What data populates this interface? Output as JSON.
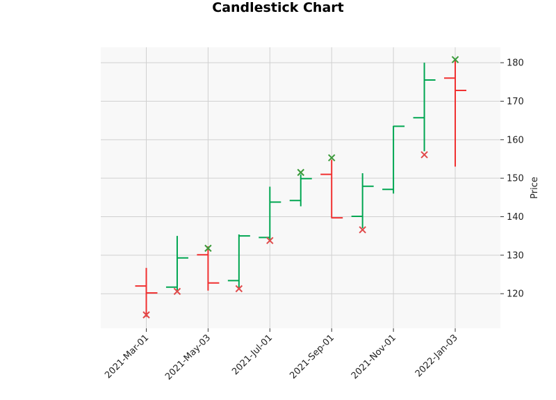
{
  "chart_data": {
    "type": "ohlc",
    "title": "Candlestick Chart",
    "ylabel": "Price",
    "xlabel": "",
    "ylim": [
      111,
      184
    ],
    "y_ticks": [
      120,
      130,
      140,
      150,
      160,
      170,
      180
    ],
    "x_tick_labels": [
      "2021-Mar-01",
      "2021-May-03",
      "2021-Jul-01",
      "2021-Sep-01",
      "2021-Nov-01",
      "2022-Jan-03"
    ],
    "x_tick_positions": [
      0,
      2,
      4,
      6,
      8,
      10
    ],
    "colors": {
      "up": "#00a651",
      "down": "#f03030",
      "marker_up": "#3a9a3a",
      "marker_down": "#e04a4a",
      "grid": "#d0d0d0",
      "plot_bg": "#f8f8f8"
    },
    "series": [
      {
        "date": "2021-Mar-01",
        "open": 122.0,
        "high": 126.7,
        "low": 114.0,
        "close": 120.2,
        "marker": 114.5,
        "marker_type": "low"
      },
      {
        "date": "2021-Apr-01",
        "open": 121.7,
        "high": 135.0,
        "low": 120.5,
        "close": 129.3,
        "marker": 120.6,
        "marker_type": "low"
      },
      {
        "date": "2021-May-03",
        "open": 130.1,
        "high": 132.3,
        "low": 120.8,
        "close": 122.8,
        "marker": 131.8,
        "marker_type": "high"
      },
      {
        "date": "2021-Jun-01",
        "open": 123.4,
        "high": 135.4,
        "low": 121.5,
        "close": 135.0,
        "marker": 121.3,
        "marker_type": "low"
      },
      {
        "date": "2021-Jul-01",
        "open": 134.6,
        "high": 147.8,
        "low": 133.5,
        "close": 143.8,
        "marker": 133.8,
        "marker_type": "low"
      },
      {
        "date": "2021-Aug-02",
        "open": 144.2,
        "high": 151.0,
        "low": 142.7,
        "close": 149.9,
        "marker": 151.5,
        "marker_type": "high"
      },
      {
        "date": "2021-Sep-01",
        "open": 151.0,
        "high": 154.8,
        "low": 139.6,
        "close": 139.7,
        "marker": 155.3,
        "marker_type": "high"
      },
      {
        "date": "2021-Oct-01",
        "open": 140.1,
        "high": 151.3,
        "low": 137.0,
        "close": 147.9,
        "marker": 136.6,
        "marker_type": "low"
      },
      {
        "date": "2021-Nov-01",
        "open": 147.1,
        "high": 163.6,
        "low": 146.0,
        "close": 163.5,
        "marker": null,
        "marker_type": null
      },
      {
        "date": "2021-Dec-01",
        "open": 165.7,
        "high": 180.0,
        "low": 157.0,
        "close": 175.5,
        "marker": 156.1,
        "marker_type": "low"
      },
      {
        "date": "2022-Jan-03",
        "open": 176.0,
        "high": 181.0,
        "low": 153.0,
        "close": 172.8,
        "marker": 180.8,
        "marker_type": "high"
      }
    ]
  }
}
